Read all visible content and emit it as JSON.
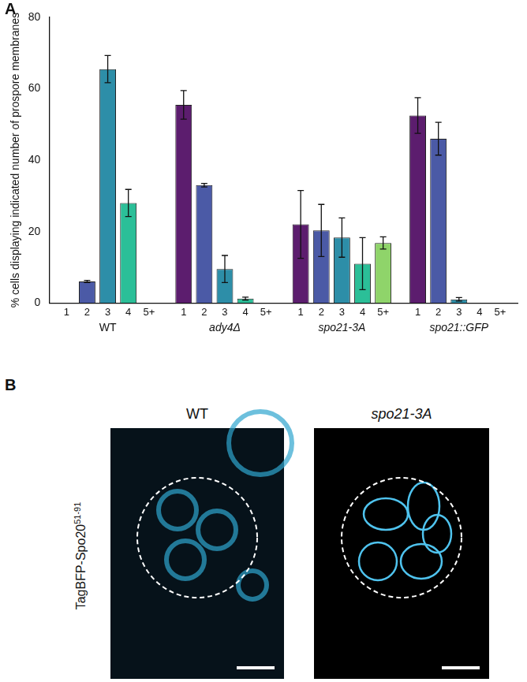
{
  "chart_data": {
    "type": "bar",
    "panel_label": "A",
    "y_label": "% cells displaying indicated number of prospore membranes",
    "categories": [
      "WT",
      "ady4Δ",
      "spo21-3A",
      "spo21::GFP"
    ],
    "series": [
      {
        "name": "1",
        "color": "#5c1d6e",
        "values": [
          0,
          55.5,
          22,
          52.5
        ],
        "errors": [
          0,
          4,
          9.5,
          5
        ]
      },
      {
        "name": "2",
        "color": "#4b5aa6",
        "values": [
          6,
          33,
          20.3,
          46
        ],
        "errors": [
          0.3,
          0.5,
          7.3,
          4.6
        ]
      },
      {
        "name": "3",
        "color": "#2d8ea8",
        "values": [
          65.5,
          9.5,
          18.3,
          1
        ],
        "errors": [
          3.8,
          3.8,
          5.5,
          0.5
        ]
      },
      {
        "name": "4",
        "color": "#2bbf98",
        "values": [
          28,
          1.2,
          11,
          0
        ],
        "errors": [
          3.8,
          0.4,
          7.3,
          0
        ]
      },
      {
        "name": "5+",
        "color": "#8fd46a",
        "values": [
          0,
          0,
          16.8,
          0
        ],
        "errors": [
          0,
          0,
          1.7,
          0
        ]
      }
    ],
    "ylim": [
      0,
      80
    ],
    "yticks": [
      0,
      20,
      40,
      60,
      80
    ],
    "grid": false
  },
  "image_panel": {
    "panel_label": "B",
    "channel_label": {
      "text": "TagBFP-Spo20",
      "superscript": "51-91"
    },
    "images": [
      "WT",
      "spo21-3A"
    ]
  }
}
